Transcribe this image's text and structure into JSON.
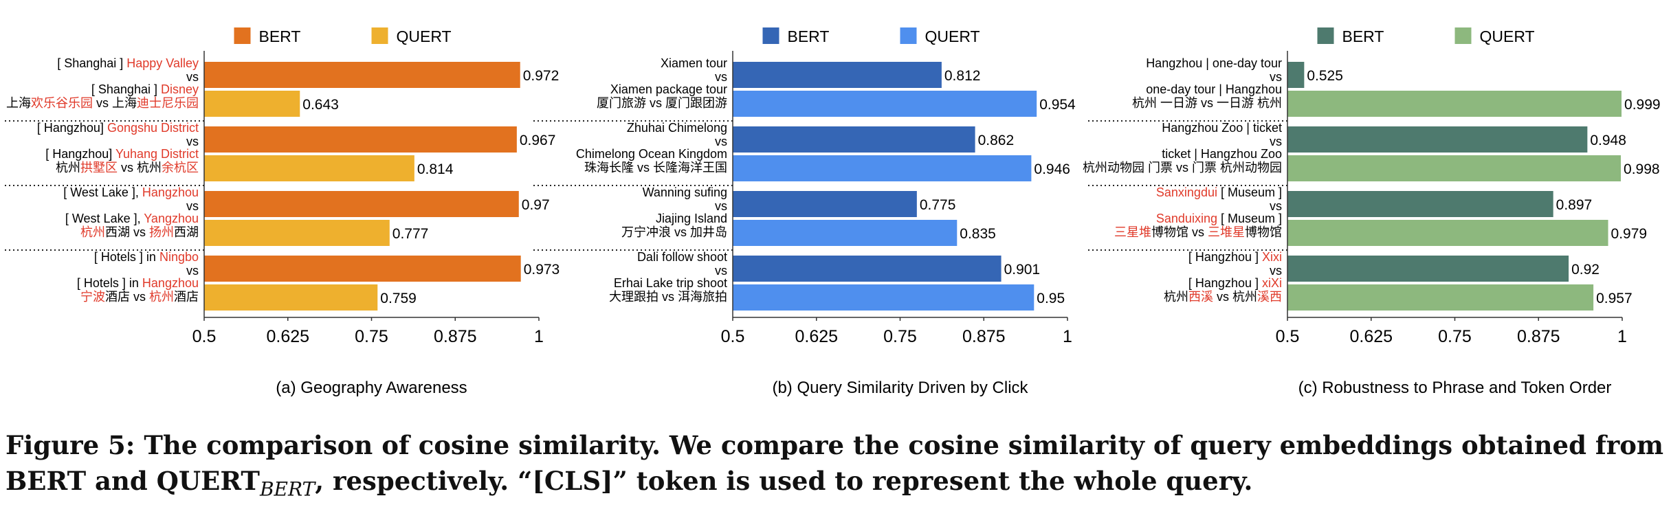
{
  "caption": {
    "label": "Figure 5:",
    "text_a": "The comparison of cosine similarity. We compare the cosine similarity of query embeddings obtained from BERT and QUERT",
    "subscript": "BERT",
    "text_b": ", respectively. “[CLS]” token is used to represent the whole query."
  },
  "chart_data": [
    {
      "type": "bar",
      "orientation": "horizontal",
      "title": "(a) Geography Awareness",
      "xlim": [
        0.5,
        1
      ],
      "xticks": [
        "0.5",
        "0.625",
        "0.75",
        "0.875",
        "1"
      ],
      "legend": {
        "position": "top",
        "entries": [
          "BERT",
          "QUERT"
        ]
      },
      "colors": {
        "BERT": "#E2721F",
        "QUERT": "#EEB02E"
      },
      "groups": [
        {
          "bert": {
            "value": 0.972,
            "label": "0.972",
            "lines": [
              [
                [
                  "[ Shanghai ]  ",
                  "#000"
                ],
                [
                  "Happy Valley",
                  "#E03A2A"
                ]
              ],
              [
                [
                  "vs",
                  "#000"
                ]
              ]
            ]
          },
          "quert": {
            "value": 0.643,
            "label": "0.643",
            "lines": [
              [
                [
                  "[ Shanghai ] ",
                  "#000"
                ],
                [
                  "Disney",
                  "#E03A2A"
                ]
              ],
              [
                [
                  "上海",
                  "#000"
                ],
                [
                  "欢乐谷乐园",
                  "#E03A2A"
                ],
                [
                  " vs 上海",
                  "#000"
                ],
                [
                  "迪士尼乐园",
                  "#E03A2A"
                ]
              ]
            ]
          }
        },
        {
          "bert": {
            "value": 0.967,
            "label": "0.967",
            "lines": [
              [
                [
                  "[ Hangzhou] ",
                  "#000"
                ],
                [
                  "Gongshu District",
                  "#E03A2A"
                ]
              ],
              [
                [
                  "vs",
                  "#000"
                ]
              ]
            ]
          },
          "quert": {
            "value": 0.814,
            "label": "0.814",
            "lines": [
              [
                [
                  "[ Hangzhou] ",
                  "#000"
                ],
                [
                  "Yuhang District",
                  "#E03A2A"
                ]
              ],
              [
                [
                  "杭州",
                  "#000"
                ],
                [
                  "拱墅区",
                  "#E03A2A"
                ],
                [
                  " vs 杭州",
                  "#000"
                ],
                [
                  "余杭区",
                  "#E03A2A"
                ]
              ]
            ]
          }
        },
        {
          "bert": {
            "value": 0.97,
            "label": "0.97",
            "lines": [
              [
                [
                  "[ West Lake ], ",
                  "#000"
                ],
                [
                  "Hangzhou",
                  "#E03A2A"
                ]
              ],
              [
                [
                  "vs",
                  "#000"
                ]
              ]
            ]
          },
          "quert": {
            "value": 0.777,
            "label": "0.777",
            "lines": [
              [
                [
                  "[ West Lake ], ",
                  "#000"
                ],
                [
                  "Yangzhou",
                  "#E03A2A"
                ]
              ],
              [
                [
                  "杭州",
                  "#E03A2A"
                ],
                [
                  "西湖 vs ",
                  "#000"
                ],
                [
                  "扬州",
                  "#E03A2A"
                ],
                [
                  "西湖",
                  "#000"
                ]
              ]
            ]
          }
        },
        {
          "bert": {
            "value": 0.973,
            "label": "0.973",
            "lines": [
              [
                [
                  "[ Hotels ]  in ",
                  "#000"
                ],
                [
                  "Ningbo",
                  "#E03A2A"
                ]
              ],
              [
                [
                  "vs",
                  "#000"
                ]
              ]
            ]
          },
          "quert": {
            "value": 0.759,
            "label": "0.759",
            "lines": [
              [
                [
                  "[ Hotels ]  in ",
                  "#000"
                ],
                [
                  "Hangzhou",
                  "#E03A2A"
                ]
              ],
              [
                [
                  "宁波",
                  "#E03A2A"
                ],
                [
                  "酒店 vs ",
                  "#000"
                ],
                [
                  "杭州",
                  "#E03A2A"
                ],
                [
                  "酒店",
                  "#000"
                ]
              ]
            ]
          }
        }
      ]
    },
    {
      "type": "bar",
      "orientation": "horizontal",
      "title": "(b) Query Similarity Driven by Click",
      "xlim": [
        0.5,
        1
      ],
      "xticks": [
        "0.5",
        "0.625",
        "0.75",
        "0.875",
        "1"
      ],
      "legend": {
        "position": "top",
        "entries": [
          "BERT",
          "QUERT"
        ]
      },
      "colors": {
        "BERT": "#3566B5",
        "QUERT": "#4F8FEE"
      },
      "groups": [
        {
          "bert": {
            "value": 0.812,
            "label": "0.812",
            "lines": [
              [
                [
                  "Xiamen tour",
                  "#000"
                ]
              ],
              [
                [
                  "vs",
                  "#000"
                ]
              ]
            ]
          },
          "quert": {
            "value": 0.954,
            "label": "0.954",
            "lines": [
              [
                [
                  "Xiamen package tour",
                  "#000"
                ]
              ],
              [
                [
                  "厦门旅游 vs 厦门跟团游",
                  "#000"
                ]
              ]
            ]
          }
        },
        {
          "bert": {
            "value": 0.862,
            "label": "0.862",
            "lines": [
              [
                [
                  "Zhuhai Chimelong",
                  "#000"
                ]
              ],
              [
                [
                  "vs",
                  "#000"
                ]
              ]
            ]
          },
          "quert": {
            "value": 0.946,
            "label": "0.946",
            "lines": [
              [
                [
                  "Chimelong Ocean Kingdom",
                  "#000"
                ]
              ],
              [
                [
                  "珠海长隆 vs 长隆海洋王国",
                  "#000"
                ]
              ]
            ]
          }
        },
        {
          "bert": {
            "value": 0.775,
            "label": "0.775",
            "lines": [
              [
                [
                  "Wanning sufing",
                  "#000"
                ]
              ],
              [
                [
                  "vs",
                  "#000"
                ]
              ]
            ]
          },
          "quert": {
            "value": 0.835,
            "label": "0.835",
            "lines": [
              [
                [
                  "Jiajing Island",
                  "#000"
                ]
              ],
              [
                [
                  "万宁冲浪 vs 加井岛",
                  "#000"
                ]
              ]
            ]
          }
        },
        {
          "bert": {
            "value": 0.901,
            "label": "0.901",
            "lines": [
              [
                [
                  "Dali follow shoot",
                  "#000"
                ]
              ],
              [
                [
                  "vs",
                  "#000"
                ]
              ]
            ]
          },
          "quert": {
            "value": 0.95,
            "label": "0.95",
            "lines": [
              [
                [
                  "Erhai Lake trip shoot",
                  "#000"
                ]
              ],
              [
                [
                  "大理跟拍 vs 洱海旅拍",
                  "#000"
                ]
              ]
            ]
          }
        }
      ]
    },
    {
      "type": "bar",
      "orientation": "horizontal",
      "title": "(c) Robustness to Phrase and Token Order",
      "xlim": [
        0.5,
        1
      ],
      "xticks": [
        "0.5",
        "0.625",
        "0.75",
        "0.875",
        "1"
      ],
      "legend": {
        "position": "top",
        "entries": [
          "BERT",
          "QUERT"
        ]
      },
      "colors": {
        "BERT": "#4E7A6E",
        "QUERT": "#8DB87E"
      },
      "groups": [
        {
          "bert": {
            "value": 0.525,
            "label": "0.525",
            "lines": [
              [
                [
                  "Hangzhou | one-day tour",
                  "#000"
                ]
              ],
              [
                [
                  "vs",
                  "#000"
                ]
              ]
            ]
          },
          "quert": {
            "value": 0.999,
            "label": "0.999",
            "lines": [
              [
                [
                  "one-day  tour | Hangzhou",
                  "#000"
                ]
              ],
              [
                [
                  "杭州 一日游 vs 一日游 杭州",
                  "#000"
                ]
              ]
            ]
          }
        },
        {
          "bert": {
            "value": 0.948,
            "label": "0.948",
            "lines": [
              [
                [
                  "Hangzhou Zoo | ticket",
                  "#000"
                ]
              ],
              [
                [
                  "vs",
                  "#000"
                ]
              ]
            ]
          },
          "quert": {
            "value": 0.998,
            "label": "0.998",
            "lines": [
              [
                [
                  "ticket | Hangzhou Zoo",
                  "#000"
                ]
              ],
              [
                [
                  "杭州动物园 门票 vs 门票 杭州动物园",
                  "#000"
                ]
              ]
            ]
          }
        },
        {
          "bert": {
            "value": 0.897,
            "label": "0.897",
            "lines": [
              [
                [
                  "Sanxingdui",
                  "#E03A2A"
                ],
                [
                  " [ Museum ]",
                  "#000"
                ]
              ],
              [
                [
                  "vs",
                  "#000"
                ]
              ]
            ]
          },
          "quert": {
            "value": 0.979,
            "label": "0.979",
            "lines": [
              [
                [
                  "Sanduixing",
                  "#E03A2A"
                ],
                [
                  " [ Museum ]",
                  "#000"
                ]
              ],
              [
                [
                  "三星堆",
                  "#E03A2A"
                ],
                [
                  "博物馆 vs ",
                  "#000"
                ],
                [
                  "三堆星",
                  "#E03A2A"
                ],
                [
                  "博物馆",
                  "#000"
                ]
              ]
            ]
          }
        },
        {
          "bert": {
            "value": 0.92,
            "label": "0.92",
            "lines": [
              [
                [
                  "[ Hangzhou ] ",
                  "#000"
                ],
                [
                  "Xixi",
                  "#E03A2A"
                ]
              ],
              [
                [
                  "vs",
                  "#000"
                ]
              ]
            ]
          },
          "quert": {
            "value": 0.957,
            "label": "0.957",
            "lines": [
              [
                [
                  "[ Hangzhou ] ",
                  "#000"
                ],
                [
                  "xiXi",
                  "#E03A2A"
                ]
              ],
              [
                [
                  "杭州",
                  "#000"
                ],
                [
                  "西溪",
                  "#E03A2A"
                ],
                [
                  " vs 杭州",
                  "#000"
                ],
                [
                  "溪西",
                  "#E03A2A"
                ]
              ]
            ]
          }
        }
      ]
    }
  ]
}
